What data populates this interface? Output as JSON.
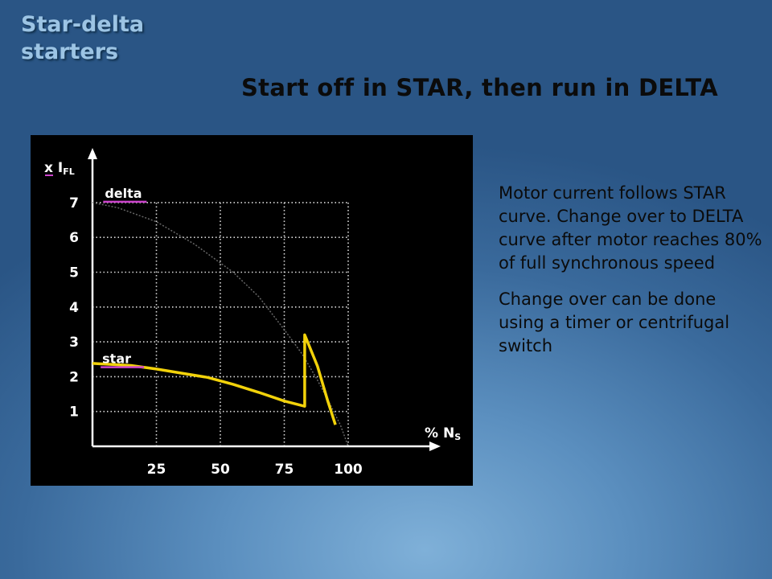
{
  "slide": {
    "corner_title_lines": [
      "Star-delta",
      "starters"
    ],
    "heading": "Start off in STAR, then run in DELTA",
    "paragraphs": [
      "Motor current follows STAR curve. Change over to DELTA curve after motor reaches 80% of full synchronous speed",
      "Change over can be done using a timer or centrifugal switch"
    ]
  },
  "chart_data": {
    "type": "line",
    "background": "#000000",
    "ylabel": {
      "prefix": "x",
      "main": "I",
      "sub": "FL"
    },
    "xlabel": {
      "main": "% N",
      "sub": "S"
    },
    "xlim": [
      0,
      100
    ],
    "ylim": [
      0,
      7
    ],
    "x_ticks": [
      25,
      50,
      75,
      100
    ],
    "y_ticks": [
      1,
      2,
      3,
      4,
      5,
      6,
      7
    ],
    "grid": true,
    "grid_color": "#dcdcdc",
    "annotations": [
      {
        "text": "delta",
        "x": 13,
        "y": 7,
        "underline_color": "#cc44cc"
      },
      {
        "text": "star",
        "x": 12,
        "y": 2.25,
        "underline_color": "#cc44cc"
      }
    ],
    "series": [
      {
        "name": "delta",
        "color": "#666666",
        "dashed": true,
        "points": [
          [
            0,
            7
          ],
          [
            10,
            6.85
          ],
          [
            25,
            6.45
          ],
          [
            40,
            5.8
          ],
          [
            55,
            5.0
          ],
          [
            65,
            4.3
          ],
          [
            75,
            3.35
          ],
          [
            82,
            2.65
          ],
          [
            88,
            1.9
          ],
          [
            93,
            1.2
          ],
          [
            97,
            0.6
          ],
          [
            100,
            0
          ]
        ]
      },
      {
        "name": "star",
        "color": "#f2d20a",
        "dashed": false,
        "points": [
          [
            0,
            2.38
          ],
          [
            15,
            2.32
          ],
          [
            25,
            2.22
          ],
          [
            35,
            2.1
          ],
          [
            45,
            1.98
          ],
          [
            55,
            1.78
          ],
          [
            65,
            1.55
          ],
          [
            75,
            1.3
          ],
          [
            83,
            1.15
          ],
          [
            83,
            3.2
          ],
          [
            88,
            2.3
          ],
          [
            92,
            1.3
          ],
          [
            95,
            0.62
          ]
        ]
      }
    ]
  }
}
